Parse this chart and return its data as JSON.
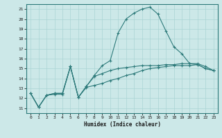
{
  "title": "",
  "xlabel": "Humidex (Indice chaleur)",
  "bg_color": "#cce8e8",
  "grid_color": "#aad4d4",
  "line_color": "#2d7a7a",
  "xlim": [
    -0.5,
    23.5
  ],
  "ylim": [
    10.5,
    21.5
  ],
  "yticks": [
    11,
    12,
    13,
    14,
    15,
    16,
    17,
    18,
    19,
    20,
    21
  ],
  "xticks": [
    0,
    1,
    2,
    3,
    4,
    5,
    6,
    7,
    8,
    9,
    10,
    11,
    12,
    13,
    14,
    15,
    16,
    17,
    18,
    19,
    20,
    21,
    22,
    23
  ],
  "series": [
    {
      "x": [
        0,
        1,
        2,
        3,
        4,
        5,
        6,
        7,
        8,
        9,
        10,
        11,
        12,
        13,
        14,
        15,
        16,
        17,
        18,
        19,
        20,
        21,
        22,
        23
      ],
      "y": [
        12.5,
        11.1,
        12.3,
        12.5,
        12.5,
        15.2,
        12.1,
        13.2,
        14.3,
        15.3,
        15.8,
        18.6,
        20.0,
        20.6,
        21.0,
        21.2,
        20.5,
        18.8,
        17.2,
        16.5,
        15.5,
        15.4,
        15.0,
        14.8
      ]
    },
    {
      "x": [
        0,
        1,
        2,
        3,
        4,
        5,
        6,
        7,
        8,
        9,
        10,
        11,
        12,
        13,
        14,
        15,
        16,
        17,
        18,
        19,
        20,
        21,
        22,
        23
      ],
      "y": [
        12.5,
        11.1,
        12.3,
        12.5,
        12.5,
        15.2,
        12.1,
        13.2,
        14.2,
        14.5,
        14.8,
        15.0,
        15.1,
        15.2,
        15.3,
        15.3,
        15.3,
        15.4,
        15.4,
        15.5,
        15.5,
        15.5,
        15.2,
        14.8
      ]
    },
    {
      "x": [
        0,
        1,
        2,
        3,
        4,
        5,
        6,
        7,
        8,
        9,
        10,
        11,
        12,
        13,
        14,
        15,
        16,
        17,
        18,
        19,
        20,
        21,
        22,
        23
      ],
      "y": [
        12.5,
        11.1,
        12.3,
        12.4,
        12.4,
        15.2,
        12.1,
        13.1,
        13.3,
        13.5,
        13.8,
        14.0,
        14.3,
        14.5,
        14.8,
        15.0,
        15.1,
        15.2,
        15.3,
        15.3,
        15.3,
        15.4,
        15.0,
        14.8
      ]
    }
  ]
}
